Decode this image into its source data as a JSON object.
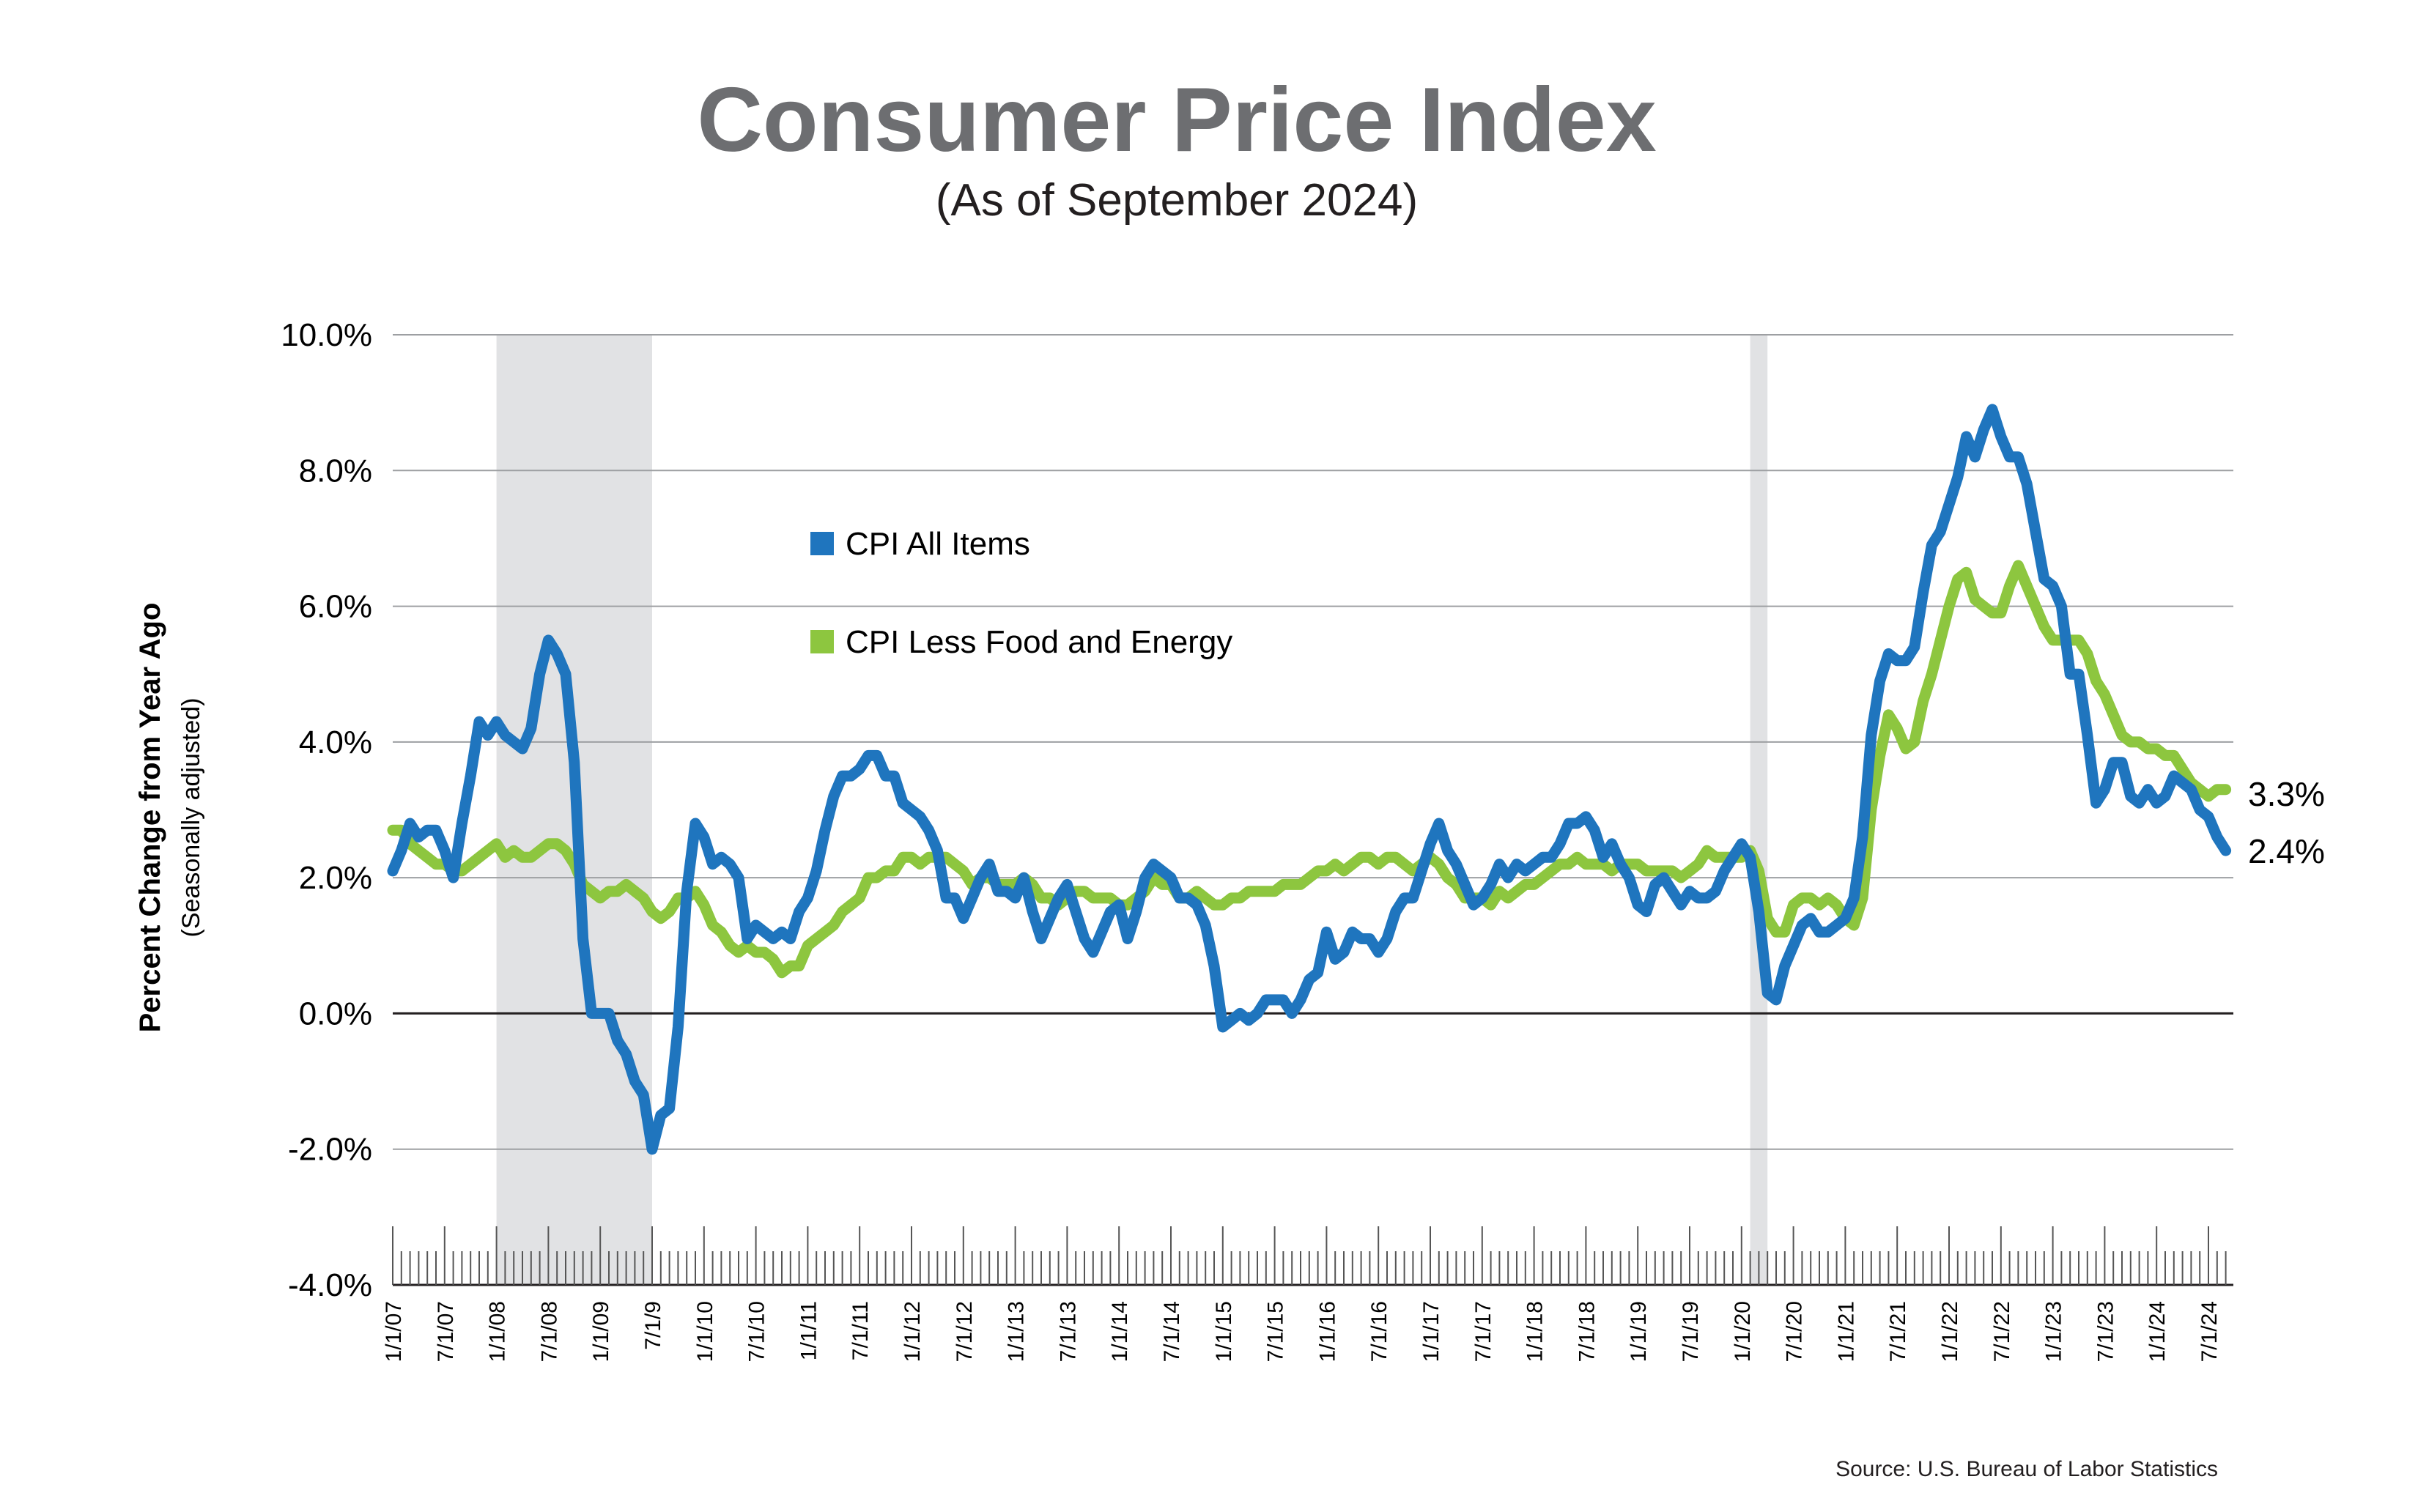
{
  "chart_data": {
    "type": "line",
    "title": "Consumer Price Index",
    "subtitle": "(As of September 2024)",
    "ylabel": "Percent Change from Year Ago",
    "ylabel_sub": "(Seasonally adjusted)",
    "source": "Source: U.S. Bureau of Labor Statistics",
    "ylim": [
      -4,
      10
    ],
    "yticks": [
      -4,
      -2,
      0,
      2,
      4,
      6,
      8,
      10
    ],
    "ytick_labels": [
      "-4.0%",
      "-2.0%",
      "0.0%",
      "2.0%",
      "4.0%",
      "6.0%",
      "8.0%",
      "10.0%"
    ],
    "x_start": "2007-01",
    "x_end": "2024-09",
    "x_frequency": "monthly",
    "xtick_labels": [
      "1/1/07",
      "7/1/07",
      "1/1/08",
      "7/1/08",
      "1/1/09",
      "7/1/9",
      "1/1/10",
      "7/1/10",
      "1/1/11",
      "7/1/11",
      "1/1/12",
      "7/1/12",
      "1/1/13",
      "7/1/13",
      "1/1/14",
      "7/1/14",
      "1/1/15",
      "7/1/15",
      "1/1/16",
      "7/1/16",
      "1/1/17",
      "7/1/17",
      "1/1/18",
      "7/1/18",
      "1/1/19",
      "7/1/19",
      "1/1/20",
      "7/1/20",
      "1/1/21",
      "7/1/21",
      "1/1/22",
      "7/1/22",
      "1/1/23",
      "7/1/23",
      "1/1/24",
      "7/1/24"
    ],
    "grid": true,
    "legend_placement": "upper-left inside plot",
    "recession_shading": [
      {
        "start": "2008-01",
        "end": "2009-07"
      },
      {
        "start": "2020-02",
        "end": "2020-04"
      }
    ],
    "colors": {
      "recession": "#e1e2e4",
      "grid": "#9d9fa2",
      "title": "#6d6e71"
    },
    "series": [
      {
        "name": "CPI All Items",
        "color": "#1f75be",
        "end_label": "2.4%",
        "values": [
          2.1,
          2.4,
          2.8,
          2.6,
          2.7,
          2.7,
          2.4,
          2.0,
          2.8,
          3.5,
          4.3,
          4.1,
          4.3,
          4.1,
          4.0,
          3.9,
          4.2,
          5.0,
          5.5,
          5.3,
          5.0,
          3.7,
          1.1,
          0.0,
          0.0,
          0.0,
          -0.4,
          -0.6,
          -1.0,
          -1.2,
          -2.0,
          -1.5,
          -1.4,
          -0.2,
          1.8,
          2.8,
          2.6,
          2.2,
          2.3,
          2.2,
          2.0,
          1.1,
          1.3,
          1.2,
          1.1,
          1.2,
          1.1,
          1.5,
          1.7,
          2.1,
          2.7,
          3.2,
          3.5,
          3.5,
          3.6,
          3.8,
          3.8,
          3.5,
          3.5,
          3.1,
          3.0,
          2.9,
          2.7,
          2.4,
          1.7,
          1.7,
          1.4,
          1.7,
          2.0,
          2.2,
          1.8,
          1.8,
          1.7,
          2.0,
          1.5,
          1.1,
          1.4,
          1.7,
          1.9,
          1.5,
          1.1,
          0.9,
          1.2,
          1.5,
          1.6,
          1.1,
          1.5,
          2.0,
          2.2,
          2.1,
          2.0,
          1.7,
          1.7,
          1.6,
          1.3,
          0.7,
          -0.2,
          -0.1,
          0.0,
          -0.1,
          0.0,
          0.2,
          0.2,
          0.2,
          0.0,
          0.2,
          0.5,
          0.6,
          1.2,
          0.8,
          0.9,
          1.2,
          1.1,
          1.1,
          0.9,
          1.1,
          1.5,
          1.7,
          1.7,
          2.1,
          2.5,
          2.8,
          2.4,
          2.2,
          1.9,
          1.6,
          1.7,
          1.9,
          2.2,
          2.0,
          2.2,
          2.1,
          2.2,
          2.3,
          2.3,
          2.5,
          2.8,
          2.8,
          2.9,
          2.7,
          2.3,
          2.5,
          2.2,
          2.0,
          1.6,
          1.5,
          1.9,
          2.0,
          1.8,
          1.6,
          1.8,
          1.7,
          1.7,
          1.8,
          2.1,
          2.3,
          2.5,
          2.3,
          1.5,
          0.3,
          0.2,
          0.7,
          1.0,
          1.3,
          1.4,
          1.2,
          1.2,
          1.3,
          1.4,
          1.7,
          2.6,
          4.1,
          4.9,
          5.3,
          5.2,
          5.2,
          5.4,
          6.2,
          6.9,
          7.1,
          7.5,
          7.9,
          8.5,
          8.2,
          8.6,
          8.9,
          8.5,
          8.2,
          8.2,
          7.8,
          7.1,
          6.4,
          6.3,
          6.0,
          5.0,
          5.0,
          4.1,
          3.1,
          3.3,
          3.7,
          3.7,
          3.2,
          3.1,
          3.3,
          3.1,
          3.2,
          3.5,
          3.4,
          3.3,
          3.0,
          2.9,
          2.6,
          2.4
        ]
      },
      {
        "name": "CPI Less Food and Energy",
        "color": "#8dc63f",
        "end_label": "3.3%",
        "values": [
          2.7,
          2.7,
          2.5,
          2.4,
          2.3,
          2.2,
          2.2,
          2.1,
          2.1,
          2.2,
          2.3,
          2.4,
          2.5,
          2.3,
          2.4,
          2.3,
          2.3,
          2.4,
          2.5,
          2.5,
          2.4,
          2.2,
          1.9,
          1.8,
          1.7,
          1.8,
          1.8,
          1.9,
          1.8,
          1.7,
          1.5,
          1.4,
          1.5,
          1.7,
          1.7,
          1.8,
          1.6,
          1.3,
          1.2,
          1.0,
          0.9,
          1.0,
          0.9,
          0.9,
          0.8,
          0.6,
          0.7,
          0.7,
          1.0,
          1.1,
          1.2,
          1.3,
          1.5,
          1.6,
          1.7,
          2.0,
          2.0,
          2.1,
          2.1,
          2.3,
          2.3,
          2.2,
          2.3,
          2.3,
          2.3,
          2.2,
          2.1,
          1.9,
          2.0,
          2.0,
          1.9,
          1.9,
          1.9,
          2.0,
          1.9,
          1.7,
          1.7,
          1.6,
          1.7,
          1.8,
          1.8,
          1.7,
          1.7,
          1.7,
          1.6,
          1.6,
          1.7,
          1.8,
          2.0,
          1.9,
          1.9,
          1.7,
          1.7,
          1.8,
          1.7,
          1.6,
          1.6,
          1.7,
          1.7,
          1.8,
          1.8,
          1.8,
          1.8,
          1.9,
          1.9,
          1.9,
          2.0,
          2.1,
          2.1,
          2.2,
          2.1,
          2.2,
          2.3,
          2.3,
          2.2,
          2.3,
          2.3,
          2.2,
          2.1,
          2.2,
          2.3,
          2.2,
          2.0,
          1.9,
          1.7,
          1.7,
          1.7,
          1.6,
          1.8,
          1.7,
          1.8,
          1.9,
          1.9,
          2.0,
          2.1,
          2.2,
          2.2,
          2.3,
          2.2,
          2.2,
          2.2,
          2.1,
          2.2,
          2.2,
          2.2,
          2.1,
          2.1,
          2.1,
          2.1,
          2.0,
          2.1,
          2.2,
          2.4,
          2.3,
          2.3,
          2.3,
          2.3,
          2.4,
          2.1,
          1.4,
          1.2,
          1.2,
          1.6,
          1.7,
          1.7,
          1.6,
          1.7,
          1.6,
          1.4,
          1.3,
          1.7,
          3.0,
          3.8,
          4.4,
          4.2,
          3.9,
          4.0,
          4.6,
          5.0,
          5.5,
          6.0,
          6.4,
          6.5,
          6.1,
          6.0,
          5.9,
          5.9,
          6.3,
          6.6,
          6.3,
          6.0,
          5.7,
          5.5,
          5.5,
          5.5,
          5.5,
          5.3,
          4.9,
          4.7,
          4.4,
          4.1,
          4.0,
          4.0,
          3.9,
          3.9,
          3.8,
          3.8,
          3.6,
          3.4,
          3.3,
          3.2,
          3.3,
          3.3
        ]
      }
    ]
  }
}
